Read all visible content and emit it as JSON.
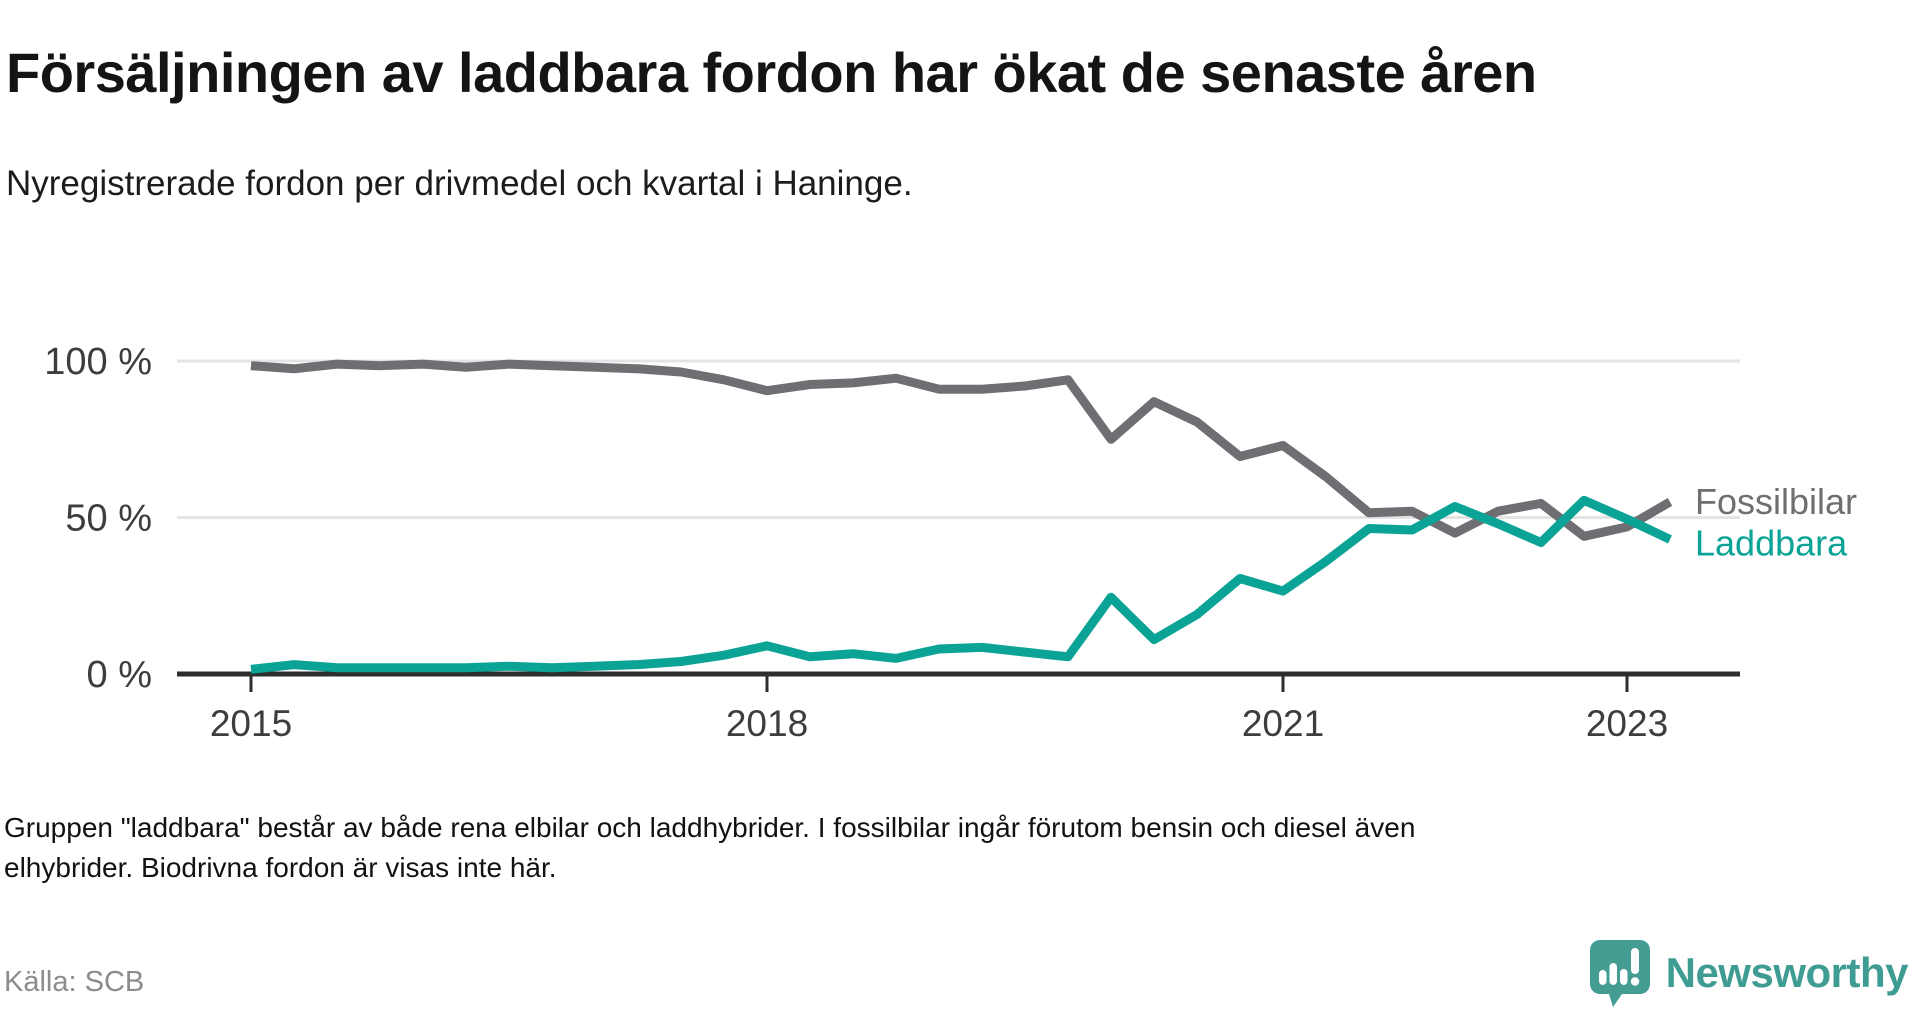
{
  "title": "Försäljningen av laddbara fordon har ökat de senaste åren",
  "subtitle": "Nyregistrerade fordon per drivmedel och kvartal i Haninge.",
  "footnote": "Gruppen \"laddbara\" består av både rena elbilar och laddhybrider. I fossilbilar ingår förutom bensin och diesel även elhybrider. Biodrivna fordon är visas inte här.",
  "source": "Källa: SCB",
  "logo_text": "Newsworthy",
  "colors": {
    "fossil": "#6e6e73",
    "laddbara": "#0aa396",
    "gridline": "#e4e4e4",
    "axis": "#2e2e2e",
    "logo_teal": "#449c93"
  },
  "chart_data": {
    "type": "line",
    "unit": "%",
    "ylim": [
      0,
      100
    ],
    "grid": "horizontal",
    "legend_position": "right-of-line-ends",
    "y_ticks": [
      {
        "label": "0 %",
        "value": 0
      },
      {
        "label": "50 %",
        "value": 50
      },
      {
        "label": "100 %",
        "value": 100
      }
    ],
    "x_ticks": [
      {
        "label": "2015",
        "t": 0
      },
      {
        "label": "2018",
        "t": 12
      },
      {
        "label": "2021",
        "t": 24
      },
      {
        "label": "2023",
        "t": 32
      }
    ],
    "x": [
      "2015 Q1",
      "2015 Q2",
      "2015 Q3",
      "2015 Q4",
      "2016 Q1",
      "2016 Q2",
      "2016 Q3",
      "2016 Q4",
      "2017 Q1",
      "2017 Q2",
      "2017 Q3",
      "2017 Q4",
      "2018 Q1",
      "2018 Q2",
      "2018 Q3",
      "2018 Q4",
      "2019 Q1",
      "2019 Q2",
      "2019 Q3",
      "2019 Q4",
      "2020 Q1",
      "2020 Q2",
      "2020 Q3",
      "2020 Q4",
      "2021 Q1",
      "2021 Q2",
      "2021 Q3",
      "2021 Q4",
      "2022 Q1",
      "2022 Q2",
      "2022 Q3",
      "2022 Q4",
      "2023 Q1",
      "2023 Q2"
    ],
    "series": [
      {
        "name": "Fossilbilar",
        "color": "#6e6e73",
        "label_dy": 12,
        "values": [
          98.5,
          97.5,
          99,
          98.5,
          99,
          98,
          99,
          98.5,
          98,
          97.5,
          96.5,
          94,
          90.5,
          92.5,
          93,
          94.5,
          91,
          91,
          92,
          94,
          75,
          87,
          80.5,
          69.5,
          73,
          63,
          51.5,
          52,
          45,
          52,
          54.5,
          44,
          47,
          55
        ]
      },
      {
        "name": "Laddbara",
        "color": "#0aa396",
        "label_dy": 16,
        "values": [
          1.5,
          3,
          2,
          2,
          2,
          2,
          2.5,
          2,
          2.5,
          3,
          4,
          6,
          9,
          5.5,
          6.5,
          5,
          8,
          8.5,
          7,
          5.5,
          24.5,
          11,
          19,
          30.5,
          26.5,
          36,
          46.5,
          46,
          53.5,
          48,
          42,
          55.5,
          49.5,
          43
        ]
      }
    ]
  }
}
